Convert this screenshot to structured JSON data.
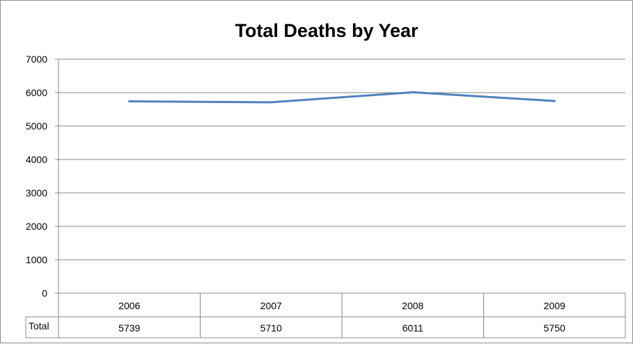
{
  "chart_data": {
    "type": "line",
    "title": "Total Deaths by Year",
    "xlabel": "",
    "ylabel": "",
    "categories": [
      "2006",
      "2007",
      "2008",
      "2009"
    ],
    "series": [
      {
        "name": "Total",
        "values": [
          5739,
          5710,
          6011,
          5750
        ]
      }
    ],
    "ylim": [
      0,
      7000
    ],
    "yticks": [
      0,
      1000,
      2000,
      3000,
      4000,
      5000,
      6000,
      7000
    ],
    "grid": true,
    "legend": "none",
    "data_table": true,
    "line_color": "#4F81BD",
    "grid_color": "#878787"
  }
}
